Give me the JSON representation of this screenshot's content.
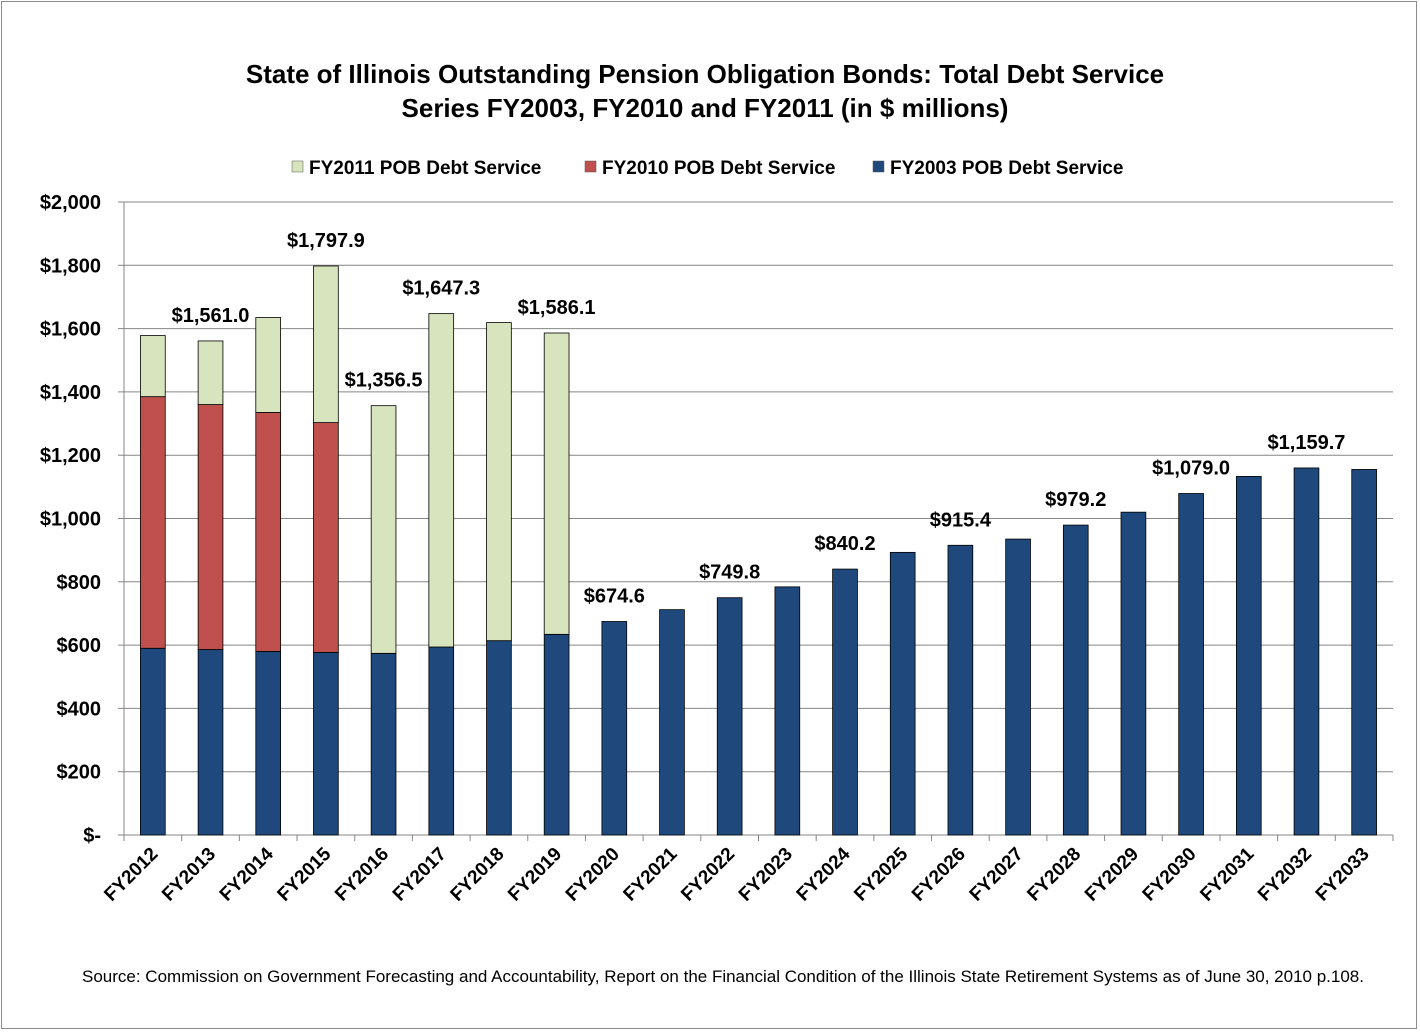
{
  "chart_data": {
    "type": "bar",
    "stacked": true,
    "title": [
      "State of Illinois Outstanding Pension Obligation Bonds: Total Debt Service",
      "Series FY2003, FY2010 and FY2011 (in $ millions)"
    ],
    "xlabel": "",
    "ylabel": "",
    "ylim": [
      0,
      2000
    ],
    "yticks": [
      0,
      200,
      400,
      600,
      800,
      1000,
      1200,
      1400,
      1600,
      1800,
      2000
    ],
    "ytick_labels": [
      "$-",
      "$200",
      "$400",
      "$600",
      "$800",
      "$1,000",
      "$1,200",
      "$1,400",
      "$1,600",
      "$1,800",
      "$2,000"
    ],
    "grid": true,
    "legend_position": "top",
    "categories": [
      "FY2012",
      "FY2013",
      "FY2014",
      "FY2015",
      "FY2016",
      "FY2017",
      "FY2018",
      "FY2019",
      "FY2020",
      "FY2021",
      "FY2022",
      "FY2023",
      "FY2024",
      "FY2025",
      "FY2026",
      "FY2027",
      "FY2028",
      "FY2029",
      "FY2030",
      "FY2031",
      "FY2032",
      "FY2033"
    ],
    "series": [
      {
        "name": "FY2003 POB Debt Service",
        "color": "#1f497d",
        "values": [
          590,
          586,
          580,
          577,
          574,
          594,
          614,
          634,
          674.6,
          712,
          749.8,
          784,
          840.2,
          893,
          915.4,
          935,
          979.2,
          1020,
          1079.0,
          1133,
          1159.7,
          1155
        ]
      },
      {
        "name": "FY2010 POB Debt Service",
        "color": "#c0504d",
        "values": [
          795,
          774,
          755,
          726,
          0,
          0,
          0,
          0,
          0,
          0,
          0,
          0,
          0,
          0,
          0,
          0,
          0,
          0,
          0,
          0,
          0,
          0
        ]
      },
      {
        "name": "FY2011 POB Debt Service",
        "color": "#d7e4bd",
        "values": [
          193,
          201,
          300,
          494.9,
          782.5,
          1053.3,
          1005,
          952.1,
          0,
          0,
          0,
          0,
          0,
          0,
          0,
          0,
          0,
          0,
          0,
          0,
          0,
          0
        ]
      }
    ],
    "legend_order": [
      "FY2011 POB Debt Service",
      "FY2010 POB Debt Service",
      "FY2003 POB Debt Service"
    ],
    "data_labels": [
      {
        "category": "FY2013",
        "text": "$1,561.0"
      },
      {
        "category": "FY2015",
        "text": "$1,797.9"
      },
      {
        "category": "FY2016",
        "text": "$1,356.5"
      },
      {
        "category": "FY2017",
        "text": "$1,647.3"
      },
      {
        "category": "FY2019",
        "text": "$1,586.1"
      },
      {
        "category": "FY2020",
        "text": "$674.6"
      },
      {
        "category": "FY2022",
        "text": "$749.8"
      },
      {
        "category": "FY2024",
        "text": "$840.2"
      },
      {
        "category": "FY2026",
        "text": "$915.4"
      },
      {
        "category": "FY2028",
        "text": "$979.2"
      },
      {
        "category": "FY2030",
        "text": "$1,079.0"
      },
      {
        "category": "FY2032",
        "text": "$1,159.7"
      }
    ]
  },
  "source_note": "Source: Commission on Government Forecasting and Accountability, Report on the Financial Condition of the Illinois State Retirement Systems as of June 30, 2010 p.108."
}
